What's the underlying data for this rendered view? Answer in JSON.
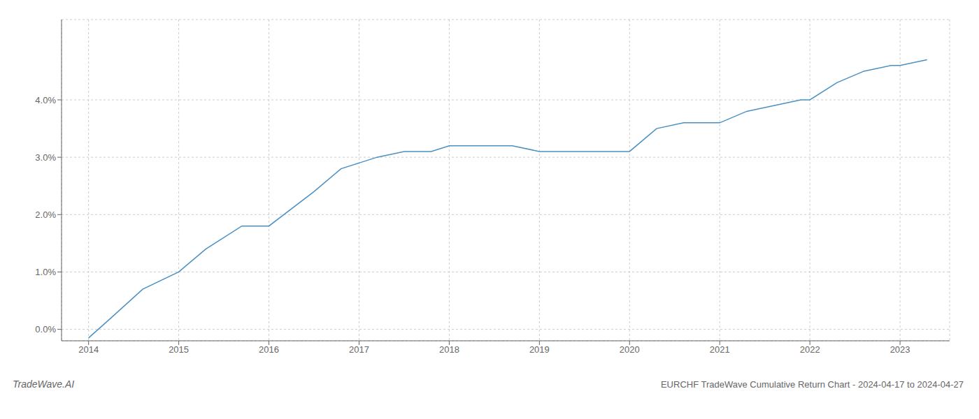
{
  "chart_data": {
    "type": "line",
    "title": "EURCHF TradeWave Cumulative Return Chart - 2024-04-17 to 2024-04-27",
    "annotations": [
      "TradeWave.AI"
    ],
    "x": [
      2014.0,
      2014.25,
      2014.6,
      2015.0,
      2015.3,
      2015.7,
      2016.0,
      2016.5,
      2016.8,
      2017.0,
      2017.2,
      2017.5,
      2017.8,
      2018.0,
      2018.3,
      2018.7,
      2019.0,
      2019.3,
      2019.5,
      2019.8,
      2020.0,
      2020.3,
      2020.6,
      2021.0,
      2021.3,
      2021.6,
      2021.9,
      2022.0,
      2022.3,
      2022.6,
      2022.9,
      2023.0,
      2023.3
    ],
    "values": [
      -0.0015,
      0.002,
      0.007,
      0.01,
      0.014,
      0.018,
      0.018,
      0.024,
      0.028,
      0.029,
      0.03,
      0.031,
      0.031,
      0.032,
      0.032,
      0.032,
      0.031,
      0.031,
      0.031,
      0.031,
      0.031,
      0.035,
      0.036,
      0.036,
      0.038,
      0.039,
      0.04,
      0.04,
      0.043,
      0.045,
      0.046,
      0.046,
      0.047
    ],
    "color": "#4a90c4",
    "xlim": [
      2013.7,
      2023.55
    ],
    "ylim": [
      -0.002,
      0.054
    ],
    "xticks": [
      2014,
      2015,
      2016,
      2017,
      2018,
      2019,
      2020,
      2021,
      2022,
      2023
    ],
    "yticks": [
      {
        "value": 0.0,
        "label": "0.0%"
      },
      {
        "value": 0.01,
        "label": "1.0%"
      },
      {
        "value": 0.02,
        "label": "2.0%"
      },
      {
        "value": 0.03,
        "label": "3.0%"
      },
      {
        "value": 0.04,
        "label": "4.0%"
      }
    ],
    "grid": true
  }
}
